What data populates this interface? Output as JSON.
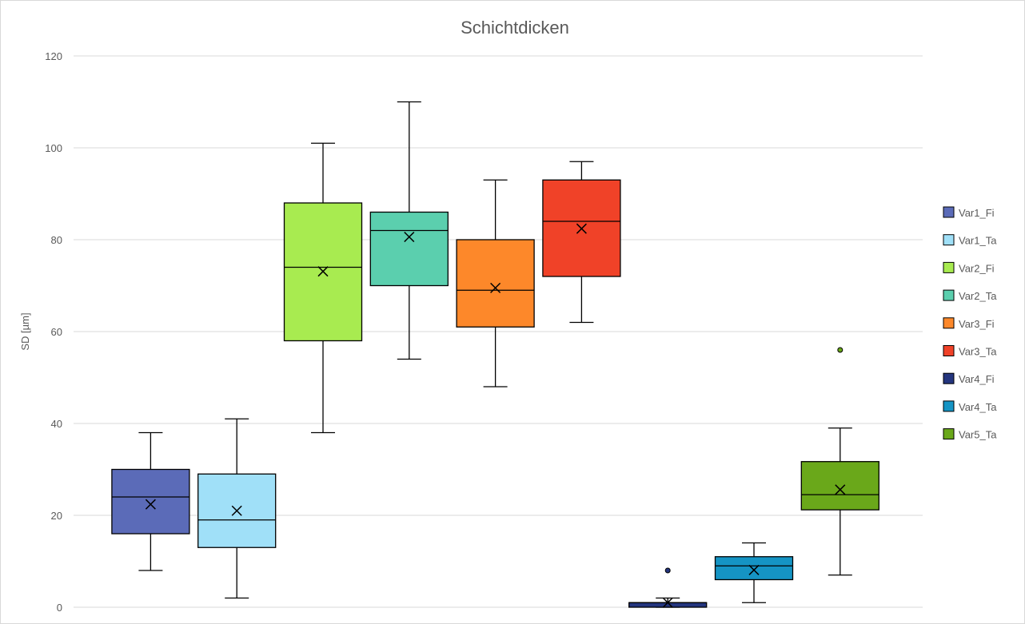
{
  "chart_data": {
    "type": "boxplot",
    "title": "Schichtdicken",
    "xlabel": "",
    "ylabel": "SD [µm]",
    "ylim": [
      0,
      120
    ],
    "yticks": [
      0,
      20,
      40,
      60,
      80,
      100,
      120
    ],
    "grid": true,
    "legend_position": "right",
    "series": [
      {
        "name": "Var1_Fi",
        "color": "#5b6bb8",
        "min": 8,
        "q1": 16,
        "median": 24,
        "q3": 30,
        "max": 38,
        "mean": 22.4,
        "outliers": []
      },
      {
        "name": "Var1_Ta",
        "color": "#a0e0f8",
        "min": 2,
        "q1": 13,
        "median": 19,
        "q3": 29,
        "max": 41,
        "mean": 21,
        "outliers": []
      },
      {
        "name": "Var2_Fi",
        "color": "#a8eb50",
        "min": 38,
        "q1": 58,
        "median": 74,
        "q3": 88,
        "max": 101,
        "mean": 73.1,
        "outliers": []
      },
      {
        "name": "Var2_Ta",
        "color": "#5bcfae",
        "min": 54,
        "q1": 70,
        "median": 82,
        "q3": 86,
        "max": 110,
        "mean": 80.6,
        "outliers": []
      },
      {
        "name": "Var3_Fi",
        "color": "#fd882a",
        "min": 48,
        "q1": 61,
        "median": 69,
        "q3": 80,
        "max": 93,
        "mean": 69.5,
        "outliers": []
      },
      {
        "name": "Var3_Ta",
        "color": "#f04228",
        "min": 62,
        "q1": 72,
        "median": 84,
        "q3": 93,
        "max": 97,
        "mean": 82.4,
        "outliers": []
      },
      {
        "name": "Var4_Fi",
        "color": "#24357e",
        "min": 0,
        "q1": 0,
        "median": 1,
        "q3": 1,
        "max": 2,
        "mean": 1,
        "outliers": [
          8
        ]
      },
      {
        "name": "Var4_Ta",
        "color": "#1594c4",
        "min": 1,
        "q1": 6,
        "median": 9,
        "q3": 11,
        "max": 14,
        "mean": 8.1,
        "outliers": []
      },
      {
        "name": "Var5_Ta",
        "color": "#6aa81a",
        "min": 7,
        "q1": 21.2,
        "median": 24.5,
        "q3": 31.7,
        "max": 39,
        "mean": 25.6,
        "outliers": [
          56
        ]
      }
    ]
  }
}
